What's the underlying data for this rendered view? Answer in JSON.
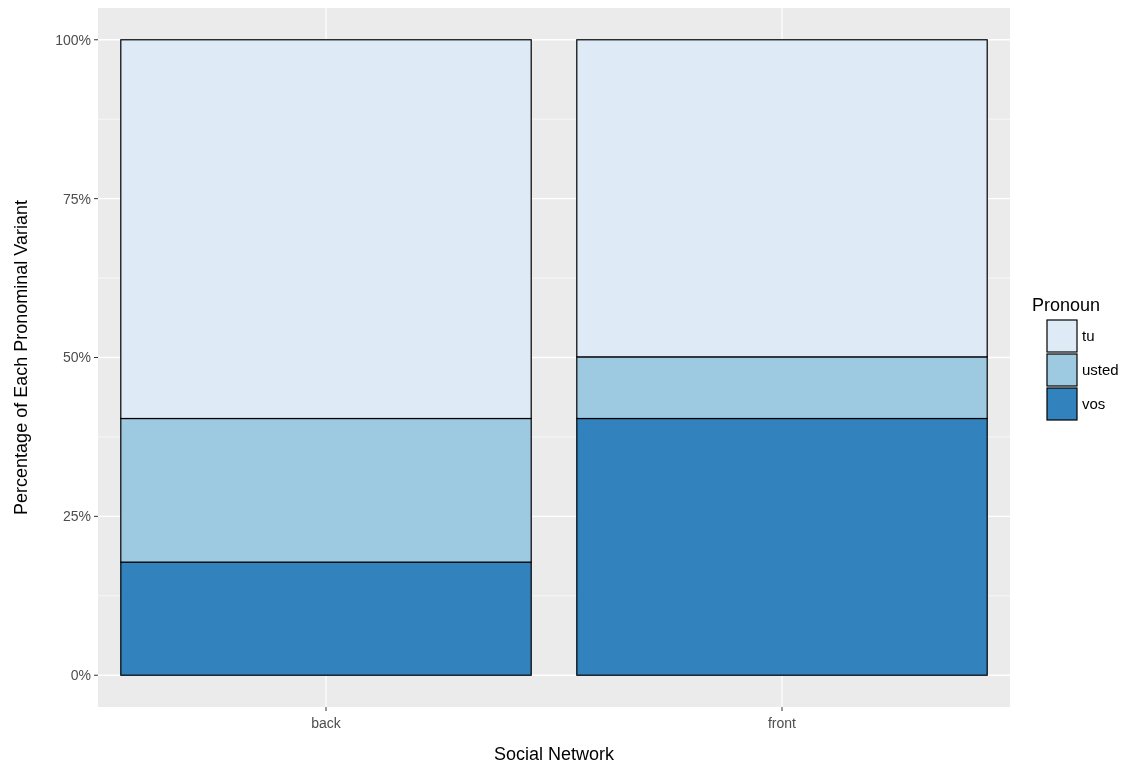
{
  "chart_data": {
    "type": "bar",
    "stacked": true,
    "xlabel": "Social Network",
    "ylabel": "Percentage of Each Pronominal Variant",
    "legend_title": "Pronoun",
    "legend": "right",
    "grid": true,
    "categories": [
      "back",
      "front"
    ],
    "series": [
      {
        "name": "vos",
        "color": "#3182bd",
        "values": [
          17.8,
          40.4
        ]
      },
      {
        "name": "usted",
        "color": "#9ecae1",
        "values": [
          22.6,
          9.7
        ]
      },
      {
        "name": "tu",
        "color": "#deebf7",
        "values": [
          59.6,
          49.9
        ]
      }
    ],
    "ylim": [
      -5,
      105
    ],
    "yticks": [
      {
        "value": 0,
        "label": "0%"
      },
      {
        "value": 25,
        "label": "25%"
      },
      {
        "value": 50,
        "label": "50%"
      },
      {
        "value": 75,
        "label": "75%"
      },
      {
        "value": 100,
        "label": "100%"
      }
    ]
  }
}
